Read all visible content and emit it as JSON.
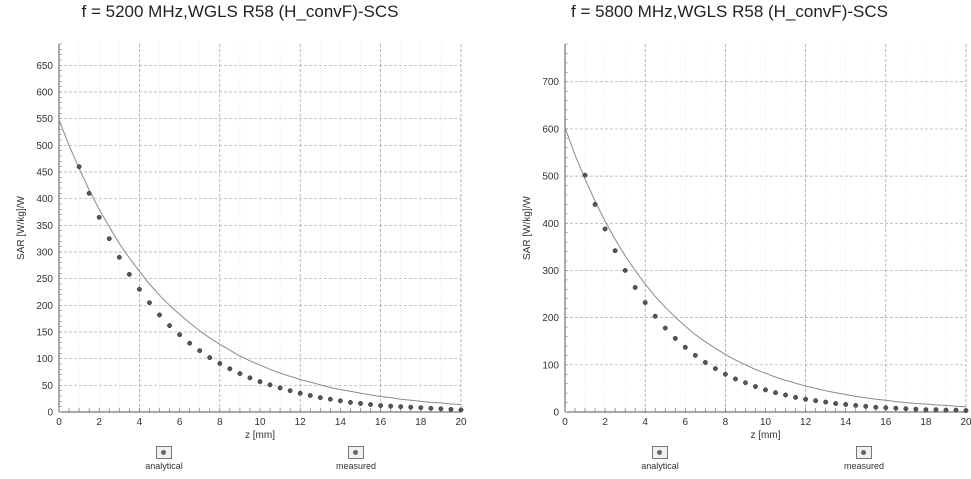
{
  "chart_data": [
    {
      "type": "line",
      "title": "f = 5200 MHz,WGLS R58 (H_convF)-SCS",
      "xlabel": "z [mm]",
      "ylabel": "SAR [W/kg]/W",
      "xlim": [
        0,
        20
      ],
      "ylim": [
        0,
        690
      ],
      "x_ticks": [
        "0",
        "2",
        "4",
        "6",
        "8",
        "10",
        "12",
        "14",
        "16",
        "18",
        "20"
      ],
      "y_ticks": [
        "0",
        "50",
        "100",
        "150",
        "200",
        "250",
        "300",
        "350",
        "400",
        "450",
        "500",
        "550",
        "600",
        "650"
      ],
      "grid": true,
      "legend": [
        "analytical",
        "measured"
      ],
      "legend_position": "bottom",
      "series": [
        {
          "name": "analytical",
          "x": [
            0,
            0.5,
            1,
            1.5,
            2,
            2.5,
            3,
            3.5,
            4,
            4.5,
            5,
            5.5,
            6,
            6.5,
            7,
            7.5,
            8,
            8.5,
            9,
            9.5,
            10,
            10.5,
            11,
            11.5,
            12,
            12.5,
            13,
            13.5,
            14,
            14.5,
            15,
            15.5,
            16,
            16.5,
            17,
            17.5,
            18,
            18.5,
            19,
            19.5,
            20
          ],
          "y": [
            548,
            500,
            457,
            416,
            380,
            347,
            316,
            289,
            264,
            240,
            219,
            200,
            183,
            167,
            152,
            139,
            127,
            116,
            105,
            96,
            88,
            80,
            73,
            67,
            61,
            56,
            51,
            46,
            42,
            39,
            35,
            32,
            29,
            27,
            24,
            22,
            20,
            18,
            17,
            15,
            14
          ]
        },
        {
          "name": "measured",
          "x": [
            1,
            1.5,
            2,
            2.5,
            3,
            3.5,
            4,
            4.5,
            5,
            5.5,
            6,
            6.5,
            7,
            7.5,
            8,
            8.5,
            9,
            9.5,
            10,
            10.5,
            11,
            11.5,
            12,
            12.5,
            13,
            13.5,
            14,
            14.5,
            15,
            15.5,
            16,
            16.5,
            17,
            17.5,
            18,
            18.5,
            19,
            19.5,
            20
          ],
          "y": [
            460,
            410,
            365,
            325,
            290,
            258,
            230,
            205,
            182,
            162,
            145,
            129,
            115,
            102,
            91,
            81,
            72,
            64,
            57,
            51,
            45,
            40,
            35,
            31,
            27,
            24,
            21,
            18,
            16,
            14,
            12,
            11,
            10,
            9,
            8,
            7,
            6,
            5,
            4
          ]
        }
      ]
    },
    {
      "type": "line",
      "title": "f = 5800 MHz,WGLS R58 (H_convF)-SCS",
      "xlabel": "z [mm]",
      "ylabel": "SAR [W/kg]/W",
      "xlim": [
        0,
        20
      ],
      "ylim": [
        0,
        780
      ],
      "x_ticks": [
        "0",
        "2",
        "4",
        "6",
        "8",
        "10",
        "12",
        "14",
        "16",
        "18",
        "20"
      ],
      "y_ticks": [
        "0",
        "100",
        "200",
        "300",
        "400",
        "500",
        "600",
        "700"
      ],
      "grid": true,
      "legend": [
        "analytical",
        "measured"
      ],
      "legend_position": "bottom",
      "series": [
        {
          "name": "analytical",
          "x": [
            0,
            0.5,
            1,
            1.5,
            2,
            2.5,
            3,
            3.5,
            4,
            4.5,
            5,
            5.5,
            6,
            6.5,
            7,
            7.5,
            8,
            8.5,
            9,
            9.5,
            10,
            10.5,
            11,
            11.5,
            12,
            12.5,
            13,
            13.5,
            14,
            14.5,
            15,
            15.5,
            16,
            16.5,
            17,
            17.5,
            18,
            18.5,
            19,
            19.5,
            20
          ],
          "y": [
            603,
            545,
            494,
            447,
            404,
            366,
            331,
            300,
            271,
            245,
            222,
            201,
            182,
            164,
            149,
            135,
            122,
            110,
            100,
            90,
            82,
            74,
            67,
            61,
            55,
            50,
            45,
            41,
            37,
            33,
            30,
            27,
            25,
            22,
            20,
            18,
            17,
            15,
            14,
            12,
            11
          ]
        },
        {
          "name": "measured",
          "x": [
            1,
            1.5,
            2,
            2.5,
            3,
            3.5,
            4,
            4.5,
            5,
            5.5,
            6,
            6.5,
            7,
            7.5,
            8,
            8.5,
            9,
            9.5,
            10,
            10.5,
            11,
            11.5,
            12,
            12.5,
            13,
            13.5,
            14,
            14.5,
            15,
            15.5,
            16,
            16.5,
            17,
            17.5,
            18,
            18.5,
            19,
            19.5,
            20
          ],
          "y": [
            502,
            440,
            388,
            342,
            300,
            264,
            232,
            203,
            178,
            156,
            137,
            120,
            105,
            92,
            80,
            70,
            62,
            54,
            47,
            41,
            36,
            31,
            27,
            24,
            21,
            18,
            16,
            14,
            12,
            10,
            9,
            8,
            7,
            6,
            5,
            5,
            4,
            4,
            3
          ]
        }
      ]
    }
  ]
}
